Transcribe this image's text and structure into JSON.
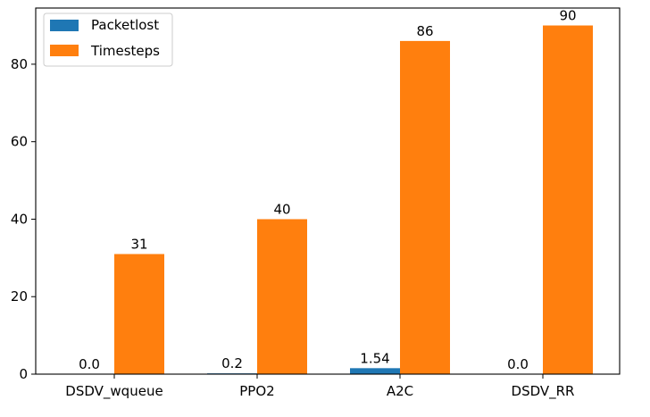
{
  "chart_data": {
    "type": "bar",
    "categories": [
      "DSDV_wqueue",
      "PPO2",
      "A2C",
      "DSDV_RR"
    ],
    "series": [
      {
        "name": "Packetlost",
        "values": [
          0.0,
          0.2,
          1.54,
          0.0
        ],
        "labels": [
          "0.0",
          "0.2",
          "1.54",
          "0.0"
        ],
        "color": "#1f77b4"
      },
      {
        "name": "Timesteps",
        "values": [
          31,
          40,
          86,
          90
        ],
        "labels": [
          "31",
          "40",
          "86",
          "90"
        ],
        "color": "#ff7f0e"
      }
    ],
    "ylim": [
      0,
      94.5
    ],
    "yticks": [
      0,
      20,
      40,
      60,
      80
    ],
    "ytick_labels": [
      "0",
      "20",
      "40",
      "60",
      "80"
    ],
    "legend_placement": "top-left",
    "grid": false
  }
}
